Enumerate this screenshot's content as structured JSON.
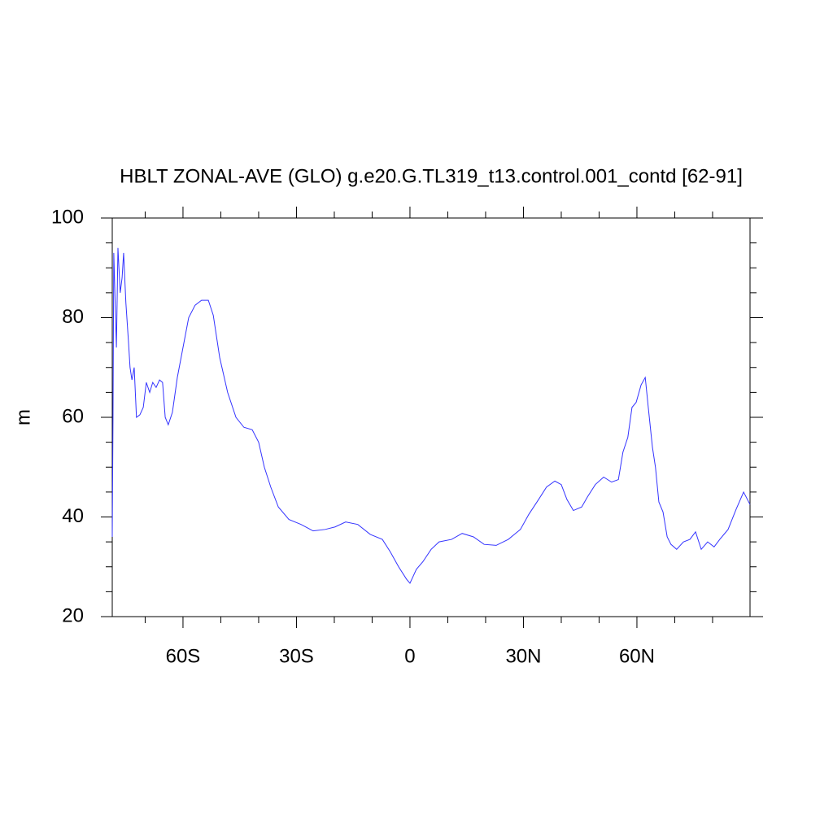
{
  "chart_data": {
    "type": "line",
    "title": "HBLT ZONAL-AVE (GLO) g.e20.G.TL319_t13.control.001_contd [62-91]",
    "y_label": "m",
    "xlim": [
      -78.7,
      89.9
    ],
    "ylim": [
      20,
      100
    ],
    "xticks": [
      {
        "value": -60,
        "label": "60S"
      },
      {
        "value": -30,
        "label": "30S"
      },
      0,
      {
        "value": 30,
        "label": "30N"
      },
      {
        "value": 60,
        "label": "60N"
      }
    ],
    "xminorticks": [
      -70,
      -50,
      -40,
      -20,
      -10,
      10,
      20,
      40,
      50,
      70,
      80
    ],
    "yticks": [
      20,
      40,
      60,
      80,
      100
    ],
    "yminorticks": [
      25,
      30,
      35,
      45,
      50,
      55,
      65,
      70,
      75,
      85,
      90,
      95
    ],
    "series": [
      {
        "name": "HBLT",
        "color": "#3333ff",
        "x": [
          -78.7,
          -78.5,
          -78.3,
          -77.6,
          -77.2,
          -76.6,
          -76.1,
          -75.7,
          -75.1,
          -74.4,
          -74.0,
          -73.5,
          -72.9,
          -72.3,
          -71.4,
          -70.5,
          -69.7,
          -68.8,
          -68.0,
          -67.1,
          -66.2,
          -65.4,
          -64.7,
          -63.9,
          -62.8,
          -61.5,
          -60.0,
          -58.5,
          -56.8,
          -55.1,
          -53.3,
          -52.0,
          -50.3,
          -48.2,
          -46.0,
          -43.9,
          -41.7,
          -40.0,
          -38.5,
          -36.8,
          -34.8,
          -32.0,
          -28.8,
          -25.6,
          -22.4,
          -19.8,
          -17.0,
          -13.8,
          -10.5,
          -7.3,
          -5.2,
          -3.0,
          -0.9,
          0,
          1.7,
          3.4,
          5.6,
          7.7,
          11.0,
          13.8,
          16.8,
          19.6,
          22.8,
          26.0,
          29.2,
          31.4,
          34.0,
          36.1,
          38.3,
          40.0,
          41.5,
          43.2,
          45.4,
          46.9,
          49.0,
          51.2,
          53.3,
          55.1,
          56.3,
          57.6,
          58.7,
          59.8,
          61.1,
          62.2,
          63.0,
          64.1,
          64.9,
          65.8,
          66.9,
          68.0,
          69.0,
          70.5,
          72.3,
          74.0,
          75.5,
          77.0,
          78.7,
          80.4,
          81.9,
          84.1,
          86.2,
          88.2,
          89.9
        ],
        "values": [
          36,
          60,
          93,
          74,
          94,
          85,
          88,
          93,
          83,
          75,
          70,
          67.5,
          70,
          60,
          60.5,
          62,
          67,
          65,
          67,
          66,
          67.5,
          67,
          60,
          58.5,
          61,
          68,
          74,
          80,
          82.5,
          83.5,
          83.5,
          80.5,
          72,
          65,
          60,
          58,
          57.5,
          55,
          50,
          46,
          42,
          39.5,
          38.5,
          37.2,
          37.5,
          38,
          39,
          38.5,
          36.5,
          35.5,
          33,
          30,
          27.5,
          26.7,
          29.5,
          31,
          33.5,
          35,
          35.5,
          36.7,
          36,
          34.5,
          34.3,
          35.5,
          37.5,
          40.5,
          43.5,
          46,
          47.2,
          46.5,
          43.5,
          41.3,
          42,
          44,
          46.5,
          48,
          47,
          47.5,
          53,
          56,
          62,
          63,
          66.5,
          68,
          62,
          54,
          50,
          43,
          41,
          36,
          34.5,
          33.5,
          35,
          35.5,
          37,
          33.5,
          35,
          34,
          35.5,
          37.5,
          41.5,
          45,
          42.5
        ]
      }
    ]
  }
}
